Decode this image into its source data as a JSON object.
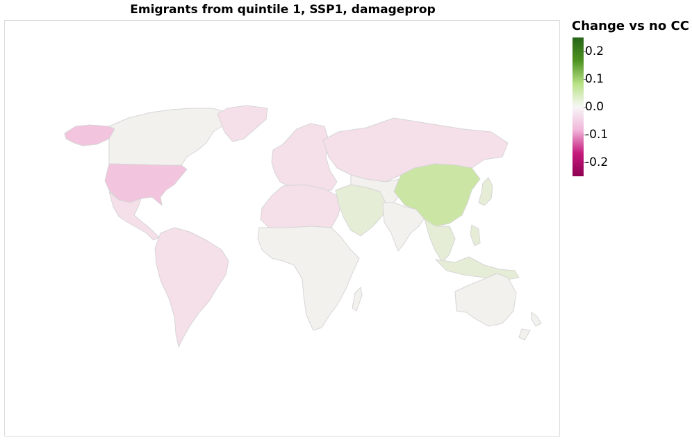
{
  "title": "Emigrants from quintile 1, SSP1, damageprop",
  "legend": {
    "title": "Change vs no CC",
    "ticks": [
      "0.2",
      "0.1",
      "0.0",
      "-0.1",
      "-0.2"
    ],
    "gradient": [
      "#276419",
      "#4d9221",
      "#b8e186",
      "#f7f7f7",
      "#f1b6da",
      "#c51b7d",
      "#8e0152"
    ]
  },
  "colors": {
    "neutral": "#f2f1ee",
    "light_pink": "#f5dfe9",
    "pink": "#f3c4de",
    "light_green": "#e6edd6",
    "green": "#cbe5a4",
    "border": "#d6d6d6"
  },
  "map_regions": [
    {
      "name": "Canada",
      "fill": "neutral"
    },
    {
      "name": "Alaska",
      "fill": "pink"
    },
    {
      "name": "Greenland",
      "fill": "light_pink"
    },
    {
      "name": "United States",
      "fill": "pink"
    },
    {
      "name": "Mexico & Central America",
      "fill": "light_pink"
    },
    {
      "name": "South America",
      "fill": "light_pink"
    },
    {
      "name": "Europe",
      "fill": "light_pink"
    },
    {
      "name": "Russia",
      "fill": "light_pink"
    },
    {
      "name": "North Africa",
      "fill": "light_pink"
    },
    {
      "name": "Sub-Saharan Africa",
      "fill": "neutral"
    },
    {
      "name": "Middle East",
      "fill": "light_green"
    },
    {
      "name": "Central Asia",
      "fill": "neutral"
    },
    {
      "name": "South Asia",
      "fill": "neutral"
    },
    {
      "name": "China",
      "fill": "green"
    },
    {
      "name": "Southeast Asia",
      "fill": "light_green"
    },
    {
      "name": "Japan",
      "fill": "light_green"
    },
    {
      "name": "Australia",
      "fill": "neutral"
    },
    {
      "name": "New Zealand",
      "fill": "neutral"
    },
    {
      "name": "Madagascar",
      "fill": "neutral"
    }
  ]
}
